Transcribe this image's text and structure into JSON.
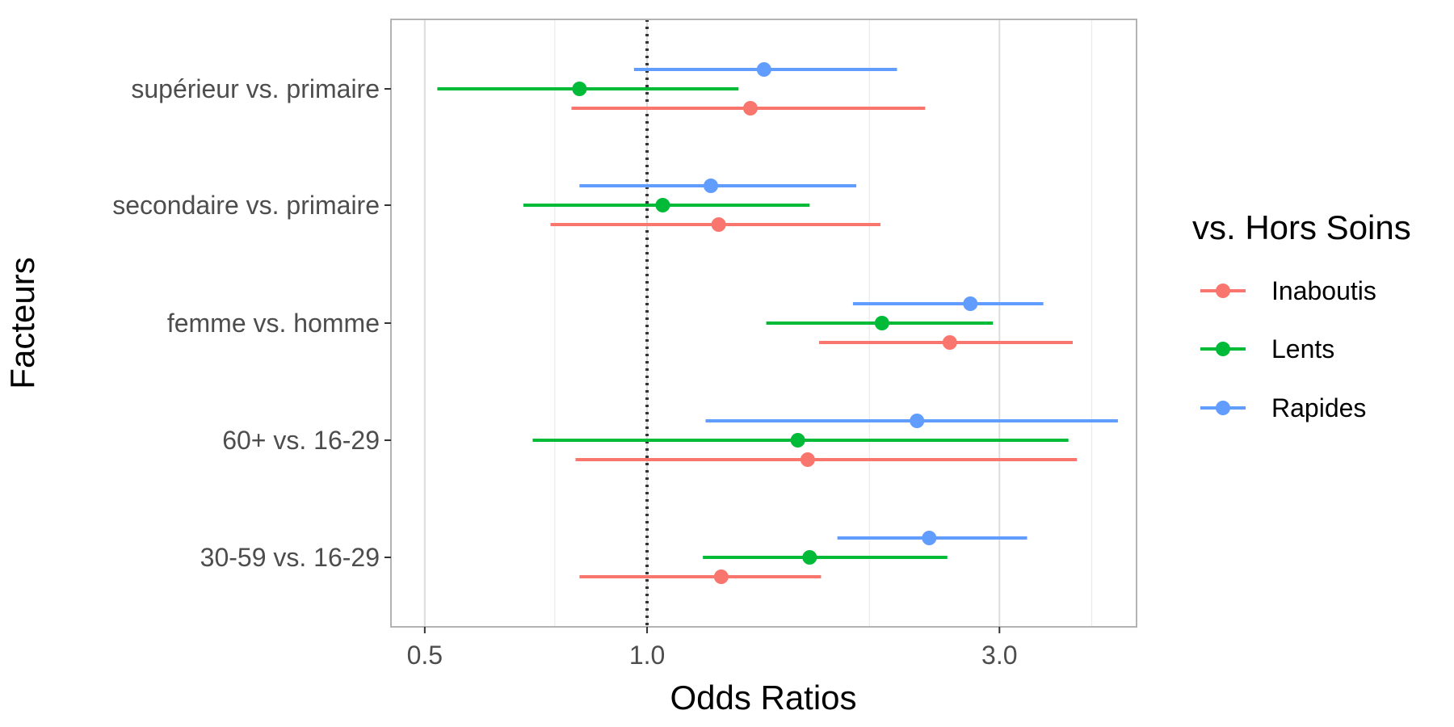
{
  "chart_data": {
    "type": "scatter",
    "subtype": "forest-plot",
    "xlabel": "Odds Ratios",
    "ylabel": "Facteurs",
    "x_scale": "log",
    "xlim": [
      0.45,
      4.6
    ],
    "x_ticks": [
      0.5,
      1.0,
      3.0
    ],
    "x_tick_labels": [
      "0.5",
      "1.0",
      "3.0"
    ],
    "x_minor_grid": [
      0.75,
      2.0,
      4.0
    ],
    "reference_line": 1.0,
    "categories": [
      "supérieur vs. primaire",
      "secondaire vs. primaire",
      "femme vs. homme",
      "60+ vs. 16-29",
      "30-59 vs. 16-29"
    ],
    "legend": {
      "title": "vs. Hors Soins",
      "position": "right"
    },
    "grid": true,
    "series": [
      {
        "name": "Inaboutis",
        "color": "#F8766D",
        "estimates": [
          1.38,
          1.25,
          2.57,
          1.65,
          1.26
        ],
        "lower": [
          0.79,
          0.74,
          1.71,
          0.8,
          0.81
        ],
        "upper": [
          2.38,
          2.07,
          3.77,
          3.82,
          1.72
        ]
      },
      {
        "name": "Lents",
        "color": "#00BA38",
        "estimates": [
          0.81,
          1.05,
          2.08,
          1.6,
          1.66
        ],
        "lower": [
          0.52,
          0.68,
          1.45,
          0.7,
          1.19
        ],
        "upper": [
          1.33,
          1.66,
          2.94,
          3.72,
          2.55
        ]
      },
      {
        "name": "Rapides",
        "color": "#619CFF",
        "estimates": [
          1.44,
          1.22,
          2.74,
          2.32,
          2.41
        ],
        "lower": [
          0.96,
          0.81,
          1.9,
          1.2,
          1.81
        ],
        "upper": [
          2.18,
          1.92,
          3.44,
          4.34,
          3.27
        ]
      }
    ]
  }
}
